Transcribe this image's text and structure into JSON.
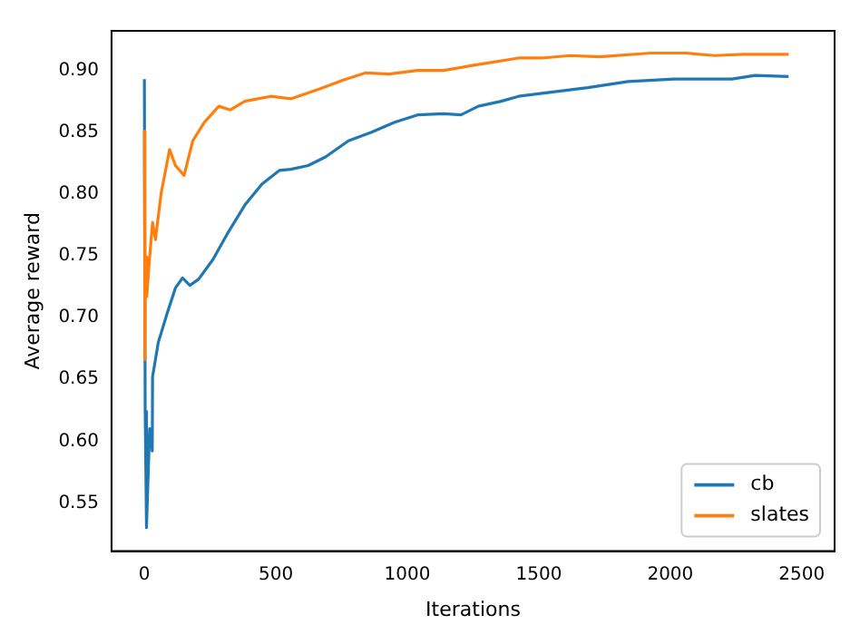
{
  "chart_data": {
    "type": "line",
    "xlabel": "Iterations",
    "ylabel": "Average reward",
    "xlim": [
      -125,
      2625
    ],
    "xticks": [
      0,
      500,
      1000,
      1500,
      2000,
      2500
    ],
    "ylim": [
      0.511,
      0.932
    ],
    "yticks": [
      0.55,
      {
        "value": 0.6,
        "label": "0.60"
      },
      0.65,
      {
        "value": 0.7,
        "label": "0.70"
      },
      0.75,
      {
        "value": 0.8,
        "label": "0.80"
      },
      0.85,
      {
        "value": 0.9,
        "label": "0.90"
      }
    ],
    "grid": false,
    "legend": "bottom right",
    "marker": "none",
    "line_style": "solid",
    "series": [
      {
        "name": "cb",
        "color": "#1f77b4",
        "x": [
          0,
          3,
          8,
          20,
          30,
          31,
          53,
          86,
          118,
          145,
          173,
          206,
          261,
          316,
          382,
          447,
          513,
          557,
          623,
          689,
          776,
          864,
          952,
          1039,
          1138,
          1204,
          1270,
          1357,
          1423,
          1533,
          1686,
          1840,
          2015,
          2235,
          2323,
          2450
        ],
        "values": [
          0.893,
          0.624,
          0.53,
          0.61,
          0.592,
          0.652,
          0.68,
          0.703,
          0.724,
          0.732,
          0.726,
          0.731,
          0.747,
          0.768,
          0.791,
          0.808,
          0.819,
          0.82,
          0.823,
          0.83,
          0.843,
          0.85,
          0.858,
          0.864,
          0.865,
          0.864,
          0.871,
          0.875,
          0.879,
          0.882,
          0.886,
          0.891,
          0.893,
          0.893,
          0.896,
          0.895
        ]
      },
      {
        "name": "slates",
        "color": "#ff7f0e",
        "x": [
          0,
          2,
          4,
          9,
          20,
          31,
          42,
          64,
          96,
          118,
          151,
          184,
          228,
          283,
          327,
          382,
          480,
          557,
          667,
          754,
          842,
          930,
          1039,
          1138,
          1248,
          1423,
          1511,
          1620,
          1730,
          1927,
          2059,
          2169,
          2279,
          2450
        ],
        "values": [
          0.851,
          0.666,
          0.749,
          0.717,
          0.749,
          0.777,
          0.763,
          0.801,
          0.836,
          0.823,
          0.815,
          0.843,
          0.858,
          0.871,
          0.868,
          0.875,
          0.879,
          0.877,
          0.885,
          0.892,
          0.898,
          0.897,
          0.9,
          0.9,
          0.904,
          0.91,
          0.91,
          0.912,
          0.911,
          0.914,
          0.914,
          0.912,
          0.913,
          0.913
        ]
      }
    ]
  }
}
